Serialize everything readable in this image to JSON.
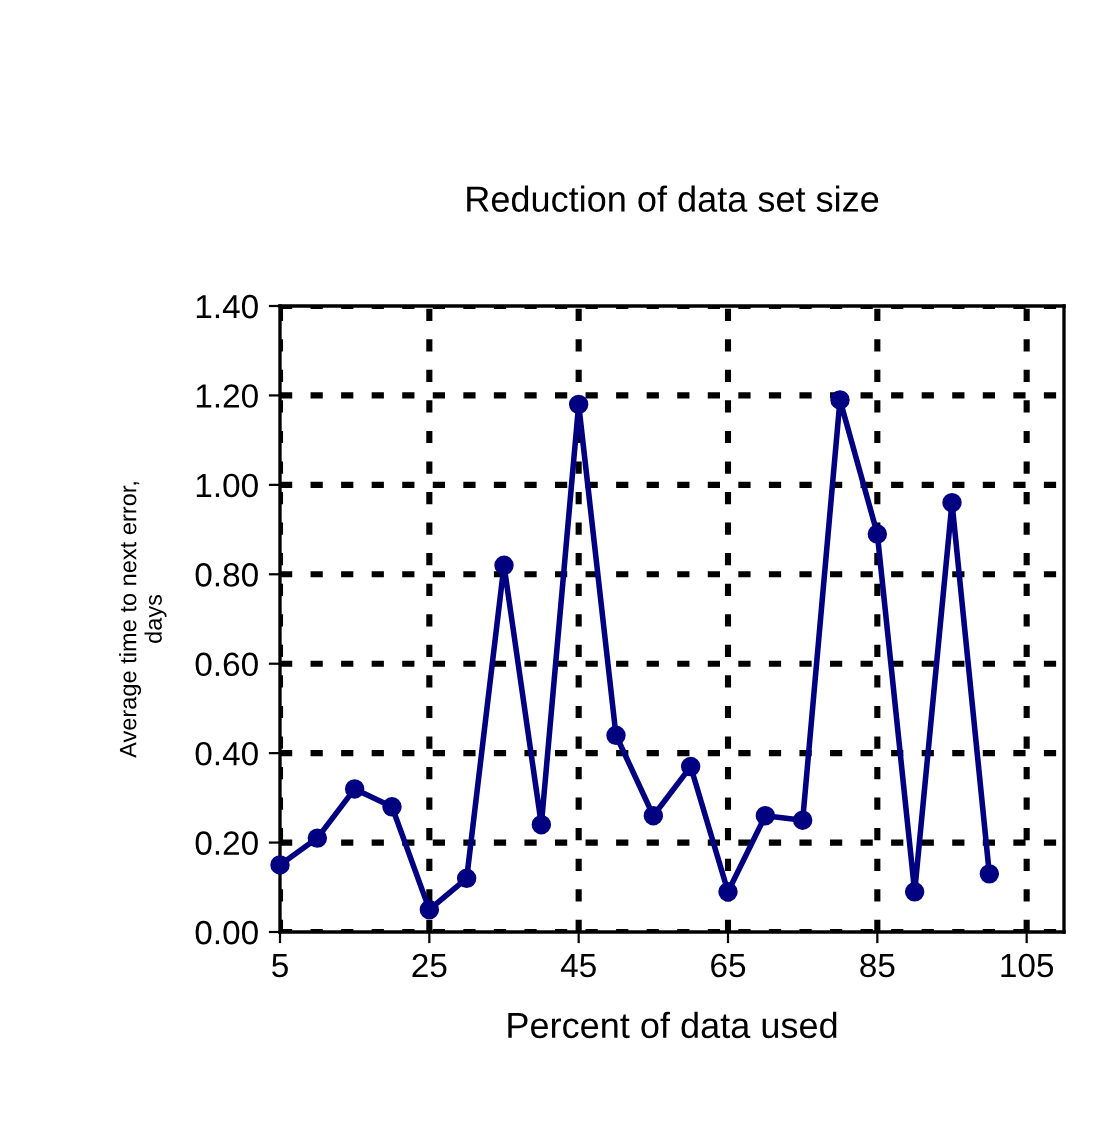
{
  "chart_data": {
    "type": "line",
    "title": "Reduction of data set size",
    "xlabel": "Percent of data used",
    "ylabel": "Average time to next error,\ndays",
    "x": [
      5,
      10,
      15,
      20,
      25,
      30,
      35,
      40,
      45,
      50,
      55,
      60,
      65,
      70,
      75,
      80,
      85,
      90,
      95,
      100
    ],
    "series": [
      {
        "color": "#000080",
        "values": [
          0.15,
          0.21,
          0.32,
          0.28,
          0.05,
          0.12,
          0.82,
          0.24,
          1.18,
          0.44,
          0.26,
          0.37,
          0.09,
          0.26,
          0.25,
          1.19,
          0.89,
          0.09,
          0.96,
          0.13
        ]
      }
    ],
    "xlim": [
      5,
      110
    ],
    "xticks": [
      5,
      25,
      45,
      65,
      85,
      105
    ],
    "ylim": [
      0,
      1.4
    ],
    "yticks": [
      {
        "value": 0,
        "label": "0.00"
      },
      {
        "value": 0.2,
        "label": "0.20"
      },
      {
        "value": 0.4,
        "label": "0.40"
      },
      {
        "value": 0.6,
        "label": "0.60"
      },
      {
        "value": 0.8,
        "label": "0.80"
      },
      {
        "value": 1.0,
        "label": "1.00"
      },
      {
        "value": 1.2,
        "label": "1.20"
      },
      {
        "value": 1.4,
        "label": "1.40"
      }
    ],
    "grid": true,
    "marker": "circle",
    "line_style": "solid",
    "legend": false
  }
}
